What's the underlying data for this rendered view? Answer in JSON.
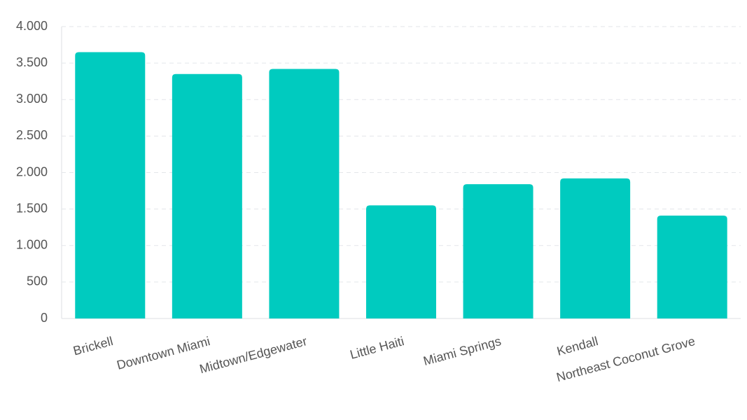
{
  "chart_data": {
    "type": "bar",
    "categories": [
      "Brickell",
      "Downtown Miami",
      "Midtown/Edgewater",
      "Little Haiti",
      "Miami Springs",
      "Kendall",
      "Northeast Coconut Grove"
    ],
    "values": [
      3650,
      3350,
      3420,
      1550,
      1840,
      1920,
      1410
    ],
    "color": "#00cbbf",
    "ylim": [
      0,
      4000
    ],
    "yticks": [
      0,
      500,
      {
        "value": 1000,
        "label": "1.000"
      },
      {
        "value": 1500,
        "label": "1.500"
      },
      {
        "value": 2000,
        "label": "2.000"
      },
      {
        "value": 2500,
        "label": "2.500"
      },
      {
        "value": 3000,
        "label": "3.000"
      },
      {
        "value": 3500,
        "label": "3.500"
      },
      {
        "value": 4000,
        "label": "4.000"
      }
    ],
    "grid": true
  }
}
